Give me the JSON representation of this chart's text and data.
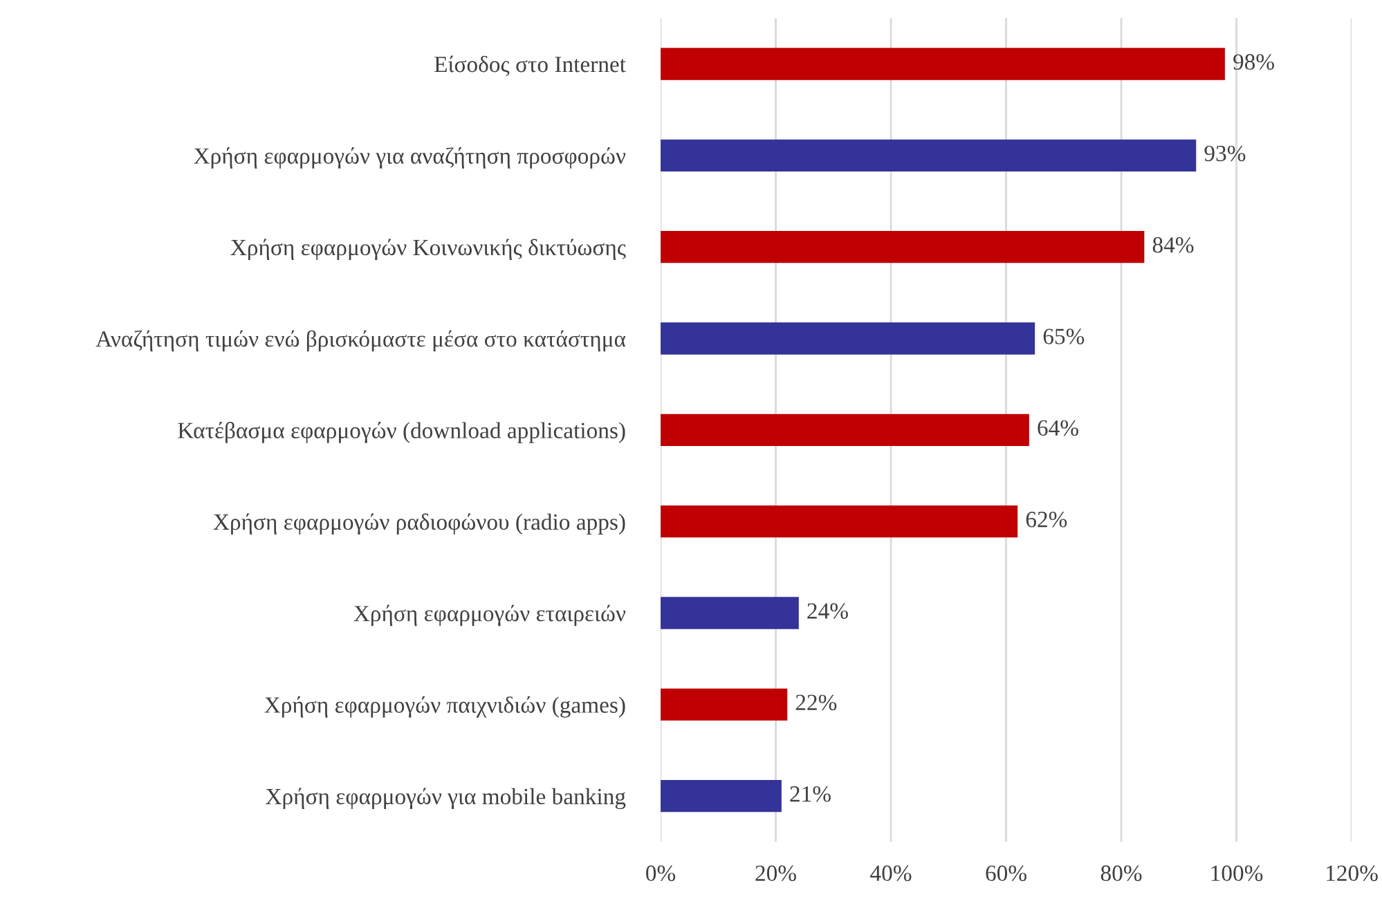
{
  "chart_data": {
    "type": "bar",
    "orientation": "horizontal",
    "categories": [
      "Είσοδος στο Internet",
      "Χρήση εφαρμογών για αναζήτηση προσφορών",
      "Χρήση εφαρμογών Κοινωνικής δικτύωσης",
      "Αναζήτηση τιμών ενώ βρισκόμαστε μέσα στο κατάστημα",
      "Κατέβασμα εφαρμογών (download applications)",
      "Χρήση εφαρμογών ραδιοφώνου (radio apps)",
      "Χρήση εφαρμογών εταιρειών",
      "Χρήση εφαρμογών παιχνιδιών (games)",
      "Χρήση εφαρμογών για mobile banking"
    ],
    "values": [
      98,
      93,
      84,
      65,
      64,
      62,
      24,
      22,
      21
    ],
    "colors": [
      "#c00000",
      "#333399",
      "#c00000",
      "#333399",
      "#c00000",
      "#c00000",
      "#333399",
      "#c00000",
      "#333399"
    ],
    "value_labels": [
      "98%",
      "93%",
      "84%",
      "65%",
      "64%",
      "62%",
      "24%",
      "22%",
      "21%"
    ],
    "xlim": [
      0,
      120
    ],
    "xticks": [
      {
        "value": 0,
        "label": "0%"
      },
      {
        "value": 20,
        "label": "20%"
      },
      {
        "value": 40,
        "label": "40%"
      },
      {
        "value": 60,
        "label": "60%"
      },
      {
        "value": 80,
        "label": "80%"
      },
      {
        "value": 100,
        "label": "100%"
      },
      {
        "value": 120,
        "label": "120%"
      }
    ],
    "grid": "x"
  }
}
